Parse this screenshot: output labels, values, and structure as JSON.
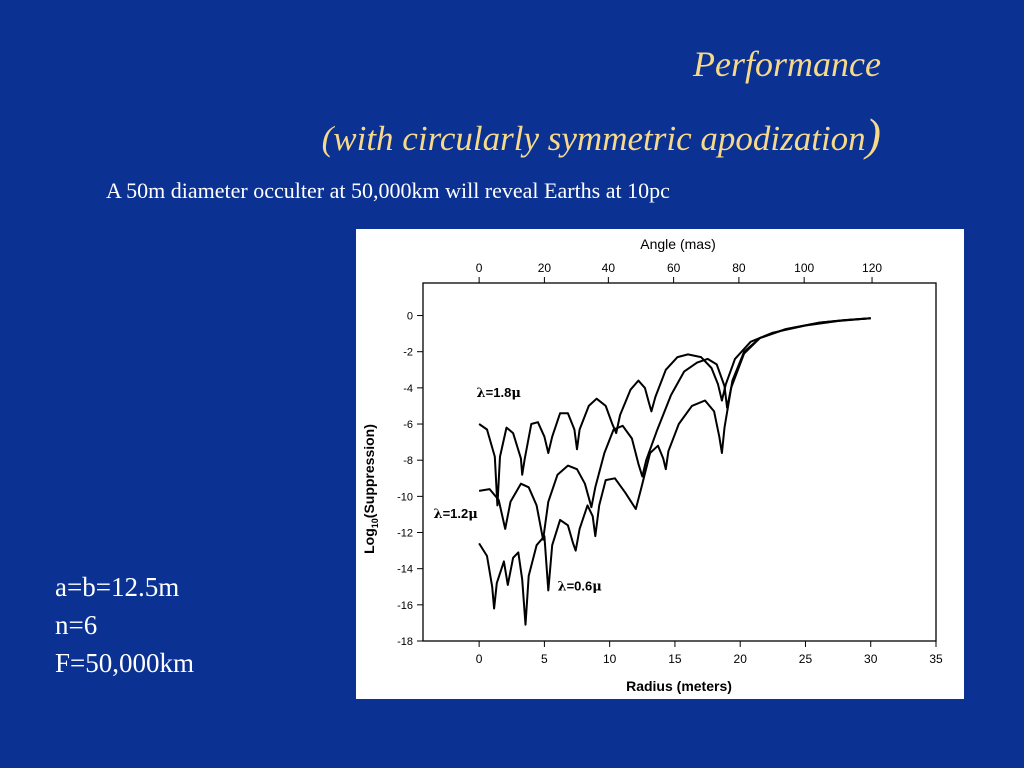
{
  "slide": {
    "title_line1": "Performance",
    "title_line2": "(with circularly symmetric apodization",
    "title_paren": ")",
    "subtitle": "A 50m diameter occulter at 50,000km will reveal Earths at 10pc",
    "params": [
      "a=b=12.5m",
      "n=6",
      "F=50,000km"
    ],
    "colors": {
      "background": "#0b3293",
      "title": "#f6d98a",
      "text": "#ffffff"
    }
  },
  "chart_data": {
    "type": "line",
    "title": "",
    "xlabel": "Radius (meters)",
    "ylabel_prefix": "Log",
    "ylabel_sub": "10",
    "ylabel_suffix": "(Suppression)",
    "top_axis_label": "Angle (mas)",
    "xlim": [
      -4.3,
      35
    ],
    "ylim": [
      -18,
      1.8
    ],
    "xticks": [
      0,
      5,
      10,
      15,
      20,
      25,
      30,
      35
    ],
    "yticks": [
      0,
      -2,
      -4,
      -6,
      -8,
      -10,
      -12,
      -14,
      -16,
      -18
    ],
    "top_ticks": [
      0,
      20,
      40,
      60,
      80,
      100,
      120
    ],
    "top_tick_positions_x": [
      0,
      5,
      9.9,
      14.9,
      19.9,
      24.9,
      30.1
    ],
    "grid": false,
    "annotations": [
      {
        "prefix": "λ",
        "text": "=1.8",
        "unit": "μ",
        "x": -0.2,
        "y": -4.5
      },
      {
        "prefix": "λ",
        "text": "=1.2",
        "unit": "μ",
        "x": -3.5,
        "y": -11.2
      },
      {
        "prefix": "λ",
        "text": "=0.6",
        "unit": "μ",
        "x": 6.0,
        "y": -15.2
      }
    ],
    "series": [
      {
        "label_text": "λ=1.8μ",
        "points": [
          [
            0,
            -6.0
          ],
          [
            0.6,
            -6.3
          ],
          [
            1.2,
            -7.8
          ],
          [
            1.4,
            -10.5
          ],
          [
            1.6,
            -7.8
          ],
          [
            2.1,
            -6.2
          ],
          [
            2.6,
            -6.5
          ],
          [
            3.2,
            -7.9
          ],
          [
            3.3,
            -8.8
          ],
          [
            3.5,
            -7.9
          ],
          [
            4.0,
            -6.0
          ],
          [
            4.5,
            -5.9
          ],
          [
            5.0,
            -6.7
          ],
          [
            5.3,
            -7.6
          ],
          [
            5.6,
            -6.7
          ],
          [
            6.2,
            -5.4
          ],
          [
            6.8,
            -5.4
          ],
          [
            7.3,
            -6.3
          ],
          [
            7.5,
            -7.4
          ],
          [
            7.7,
            -6.3
          ],
          [
            8.4,
            -5.0
          ],
          [
            9.0,
            -4.6
          ],
          [
            9.7,
            -5.0
          ],
          [
            10.2,
            -6.0
          ],
          [
            10.5,
            -6.5
          ],
          [
            10.8,
            -5.5
          ],
          [
            11.6,
            -4.1
          ],
          [
            12.2,
            -3.6
          ],
          [
            12.7,
            -4.0
          ],
          [
            13.0,
            -4.8
          ],
          [
            13.2,
            -5.3
          ],
          [
            13.5,
            -4.5
          ],
          [
            14.3,
            -3.0
          ],
          [
            15.2,
            -2.3
          ],
          [
            16.0,
            -2.15
          ],
          [
            17.0,
            -2.3
          ],
          [
            17.8,
            -2.9
          ],
          [
            18.3,
            -3.8
          ],
          [
            18.6,
            -4.7
          ],
          [
            18.9,
            -3.8
          ],
          [
            19.6,
            -2.4
          ],
          [
            20.8,
            -1.45
          ],
          [
            22.5,
            -0.95
          ],
          [
            25,
            -0.55
          ],
          [
            27.5,
            -0.3
          ],
          [
            30,
            -0.15
          ]
        ]
      },
      {
        "label_text": "λ=1.2μ",
        "points": [
          [
            0,
            -9.7
          ],
          [
            0.8,
            -9.6
          ],
          [
            1.5,
            -10.2
          ],
          [
            2.0,
            -11.8
          ],
          [
            2.4,
            -10.3
          ],
          [
            3.2,
            -9.3
          ],
          [
            3.8,
            -9.5
          ],
          [
            4.4,
            -10.5
          ],
          [
            4.9,
            -12.4
          ],
          [
            5.3,
            -10.3
          ],
          [
            6.0,
            -8.8
          ],
          [
            6.8,
            -8.3
          ],
          [
            7.5,
            -8.5
          ],
          [
            8.1,
            -9.3
          ],
          [
            8.6,
            -10.6
          ],
          [
            8.9,
            -9.5
          ],
          [
            9.6,
            -7.6
          ],
          [
            10.3,
            -6.3
          ],
          [
            11.0,
            -6.1
          ],
          [
            11.7,
            -6.8
          ],
          [
            12.2,
            -8.2
          ],
          [
            12.5,
            -8.9
          ],
          [
            12.8,
            -8.0
          ],
          [
            13.6,
            -6.4
          ],
          [
            14.7,
            -4.4
          ],
          [
            15.7,
            -3.1
          ],
          [
            16.7,
            -2.6
          ],
          [
            17.5,
            -2.4
          ],
          [
            18.2,
            -2.7
          ],
          [
            18.8,
            -3.9
          ],
          [
            19.0,
            -5.1
          ],
          [
            19.3,
            -4.0
          ],
          [
            20.3,
            -2.1
          ],
          [
            21.5,
            -1.25
          ],
          [
            23.5,
            -0.75
          ],
          [
            26,
            -0.4
          ],
          [
            28,
            -0.25
          ],
          [
            30,
            -0.15
          ]
        ]
      },
      {
        "label_text": "λ=0.6μ",
        "points": [
          [
            0,
            -12.6
          ],
          [
            0.6,
            -13.3
          ],
          [
            1.0,
            -15.0
          ],
          [
            1.15,
            -16.2
          ],
          [
            1.35,
            -14.8
          ],
          [
            1.9,
            -13.6
          ],
          [
            2.2,
            -14.9
          ],
          [
            2.6,
            -13.4
          ],
          [
            3.0,
            -13.1
          ],
          [
            3.3,
            -14.6
          ],
          [
            3.55,
            -17.1
          ],
          [
            3.8,
            -14.4
          ],
          [
            4.4,
            -12.7
          ],
          [
            5.0,
            -12.2
          ],
          [
            5.3,
            -15.2
          ],
          [
            5.6,
            -12.7
          ],
          [
            6.2,
            -11.3
          ],
          [
            6.8,
            -11.6
          ],
          [
            7.2,
            -12.6
          ],
          [
            7.4,
            -13.0
          ],
          [
            7.7,
            -11.8
          ],
          [
            8.3,
            -10.5
          ],
          [
            8.7,
            -11.1
          ],
          [
            8.9,
            -12.2
          ],
          [
            9.2,
            -10.5
          ],
          [
            9.7,
            -9.1
          ],
          [
            10.4,
            -9.0
          ],
          [
            11.2,
            -9.8
          ],
          [
            12.0,
            -10.7
          ],
          [
            12.4,
            -9.6
          ],
          [
            13.1,
            -7.6
          ],
          [
            13.7,
            -7.2
          ],
          [
            14.1,
            -7.9
          ],
          [
            14.3,
            -8.5
          ],
          [
            14.5,
            -7.5
          ],
          [
            15.3,
            -6.0
          ],
          [
            16.3,
            -5.0
          ],
          [
            17.3,
            -4.7
          ],
          [
            18.0,
            -5.3
          ],
          [
            18.4,
            -6.7
          ],
          [
            18.6,
            -7.6
          ],
          [
            18.8,
            -6.2
          ],
          [
            19.4,
            -3.6
          ],
          [
            20.3,
            -2.0
          ],
          [
            21.5,
            -1.25
          ],
          [
            23.5,
            -0.75
          ],
          [
            26,
            -0.4
          ],
          [
            28,
            -0.25
          ],
          [
            30,
            -0.15
          ]
        ]
      }
    ]
  }
}
